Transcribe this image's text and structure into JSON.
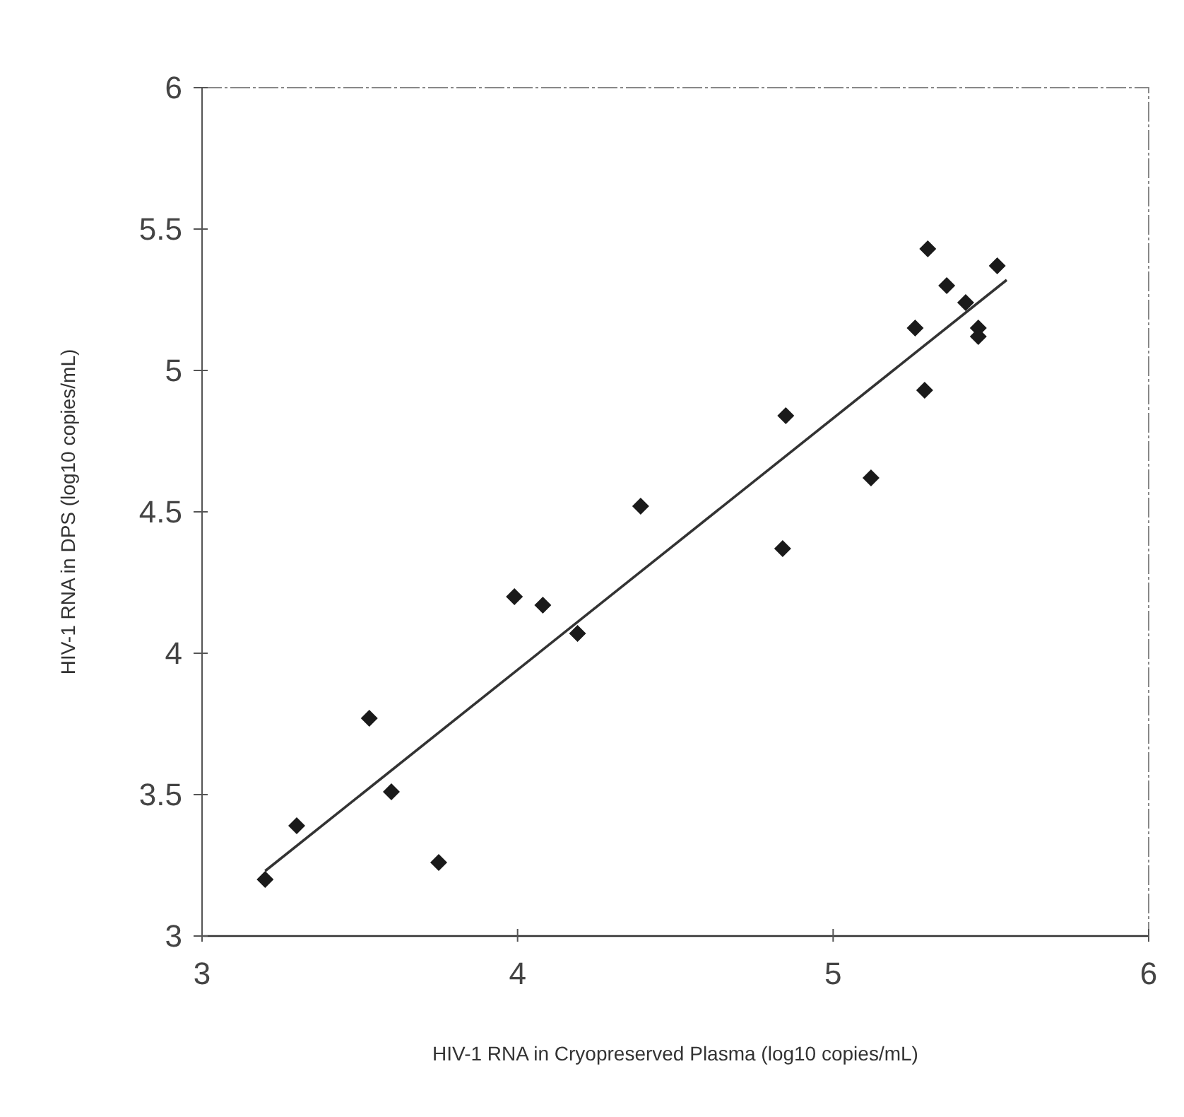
{
  "chart_data": {
    "type": "scatter",
    "xlabel": "HIV-1 RNA in Cryopreserved Plasma (log10 copies/mL)",
    "ylabel": "HIV-1 RNA in DPS (log10 copies/mL)",
    "xlim": [
      3,
      6
    ],
    "ylim": [
      3,
      6
    ],
    "xticks": [
      3,
      4,
      5,
      6
    ],
    "yticks": [
      3,
      3.5,
      4,
      4.5,
      5,
      5.5,
      6
    ],
    "grid": false,
    "marker": "diamond",
    "series": [
      {
        "color": "#1a1a1a",
        "x": [
          3.2,
          3.3,
          3.53,
          3.6,
          3.75,
          3.99,
          4.08,
          4.19,
          4.39,
          4.85,
          4.84,
          5.12,
          5.26,
          5.29,
          5.3,
          5.36,
          5.42,
          5.46,
          5.46,
          5.52
        ],
        "values": [
          3.2,
          3.39,
          3.77,
          3.51,
          3.26,
          4.2,
          4.17,
          4.07,
          4.52,
          4.84,
          4.37,
          4.62,
          5.15,
          4.93,
          5.43,
          5.3,
          5.24,
          5.15,
          5.12,
          5.37
        ]
      },
      {
        "type": "line",
        "color": "#333333",
        "marker": "none",
        "line_style": "solid",
        "x": [
          3.2,
          5.55
        ],
        "values": [
          3.23,
          5.32
        ]
      }
    ]
  }
}
